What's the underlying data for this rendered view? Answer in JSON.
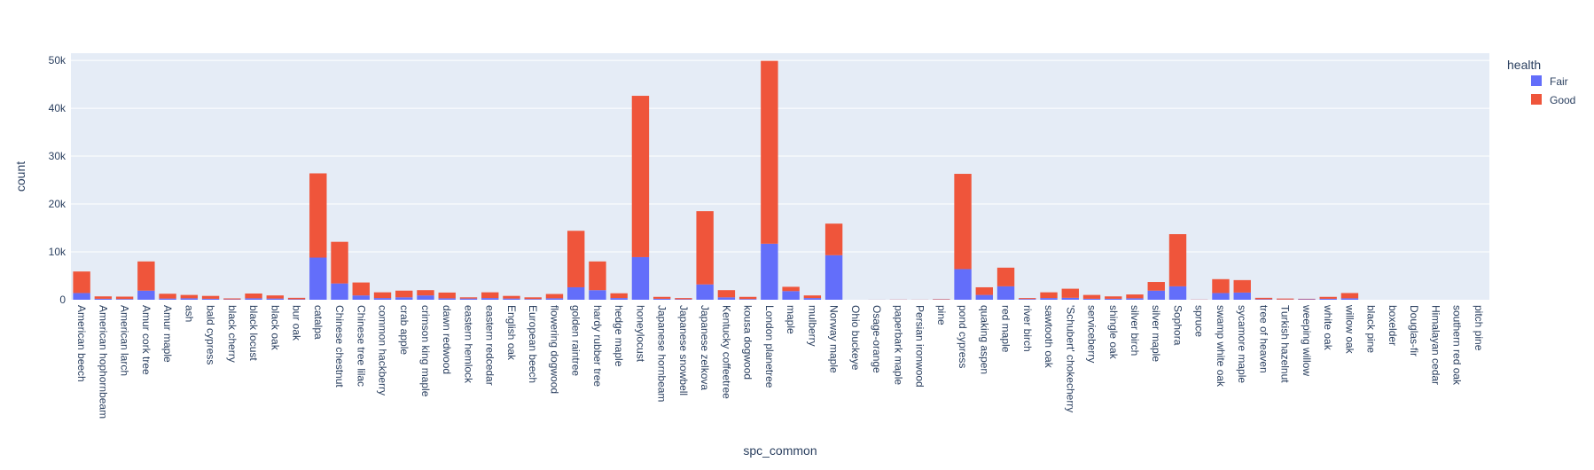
{
  "chart_data": {
    "type": "bar",
    "barmode": "stack",
    "title": "",
    "xlabel": "spc_common",
    "ylabel": "count",
    "ylim": [
      0,
      51500
    ],
    "yticks": [
      0,
      10000,
      20000,
      30000,
      40000,
      50000
    ],
    "ytick_labels": [
      "0",
      "10k",
      "20k",
      "30k",
      "40k",
      "50k"
    ],
    "grid": true,
    "legend": {
      "title": "health",
      "position": "top-right"
    },
    "colors": {
      "Fair": "#636efa",
      "Good": "#ef553b",
      "plot_bg": "#e5ecf6",
      "grid": "#ffffff",
      "text": "#2a3f5f"
    },
    "categories": [
      "American beech",
      "American hophornbeam",
      "American larch",
      "Amur cork tree",
      "Amur maple",
      "ash",
      "bald cypress",
      "black cherry",
      "black locust",
      "black oak",
      "bur oak",
      "catalpa",
      "Chinese chestnut",
      "Chinese tree lilac",
      "common hackberry",
      "crab apple",
      "crimson king maple",
      "dawn redwood",
      "eastern hemlock",
      "eastern redcedar",
      "English oak",
      "European beech",
      "flowering dogwood",
      "golden raintree",
      "hardy rubber tree",
      "hedge maple",
      "honeylocust",
      "Japanese hornbeam",
      "Japanese snowbell",
      "Japanese zelkova",
      "Kentucky coffeetree",
      "kousa dogwood",
      "London planetree",
      "maple",
      "mulberry",
      "Norway maple",
      "Ohio buckeye",
      "Osage-orange",
      "paperbark maple",
      "Persian ironwood",
      "pine",
      "pond cypress",
      "quaking aspen",
      "red maple",
      "river birch",
      "sawtooth oak",
      "'Schubert' chokecherry",
      "serviceberry",
      "shingle oak",
      "silver birch",
      "silver maple",
      "Sophora",
      "spruce",
      "swamp white oak",
      "sycamore maple",
      "tree of heaven",
      "Turkish hazelnut",
      "weeping willow",
      "white oak",
      "willow oak",
      "black pine",
      "boxelder",
      "Douglas-fir",
      "Himalayan cedar",
      "southern red oak",
      "pitch pine"
    ],
    "series": [
      {
        "name": "Fair",
        "values": [
          1400,
          200,
          150,
          1900,
          250,
          300,
          200,
          80,
          300,
          250,
          100,
          8800,
          3400,
          900,
          350,
          500,
          900,
          300,
          250,
          350,
          250,
          150,
          300,
          2600,
          2000,
          350,
          8900,
          200,
          100,
          3200,
          500,
          150,
          11700,
          1800,
          350,
          9300,
          0,
          10,
          20,
          10,
          60,
          6400,
          1000,
          2800,
          150,
          350,
          400,
          200,
          200,
          300,
          1900,
          2800,
          20,
          1400,
          1500,
          100,
          50,
          100,
          200,
          300,
          0,
          0,
          0,
          0,
          0,
          0
        ]
      },
      {
        "name": "Good",
        "values": [
          4500,
          500,
          500,
          6100,
          1000,
          700,
          600,
          200,
          1000,
          650,
          300,
          17600,
          8700,
          2700,
          1200,
          1400,
          1100,
          1200,
          250,
          1200,
          550,
          350,
          900,
          11800,
          6000,
          1000,
          33700,
          400,
          250,
          15300,
          1500,
          450,
          38200,
          900,
          550,
          6600,
          0,
          10,
          30,
          20,
          90,
          19900,
          1600,
          3900,
          200,
          1200,
          1900,
          800,
          500,
          800,
          1800,
          10900,
          30,
          2900,
          2600,
          300,
          200,
          100,
          400,
          1100,
          0,
          0,
          0,
          0,
          0,
          0
        ]
      }
    ]
  }
}
